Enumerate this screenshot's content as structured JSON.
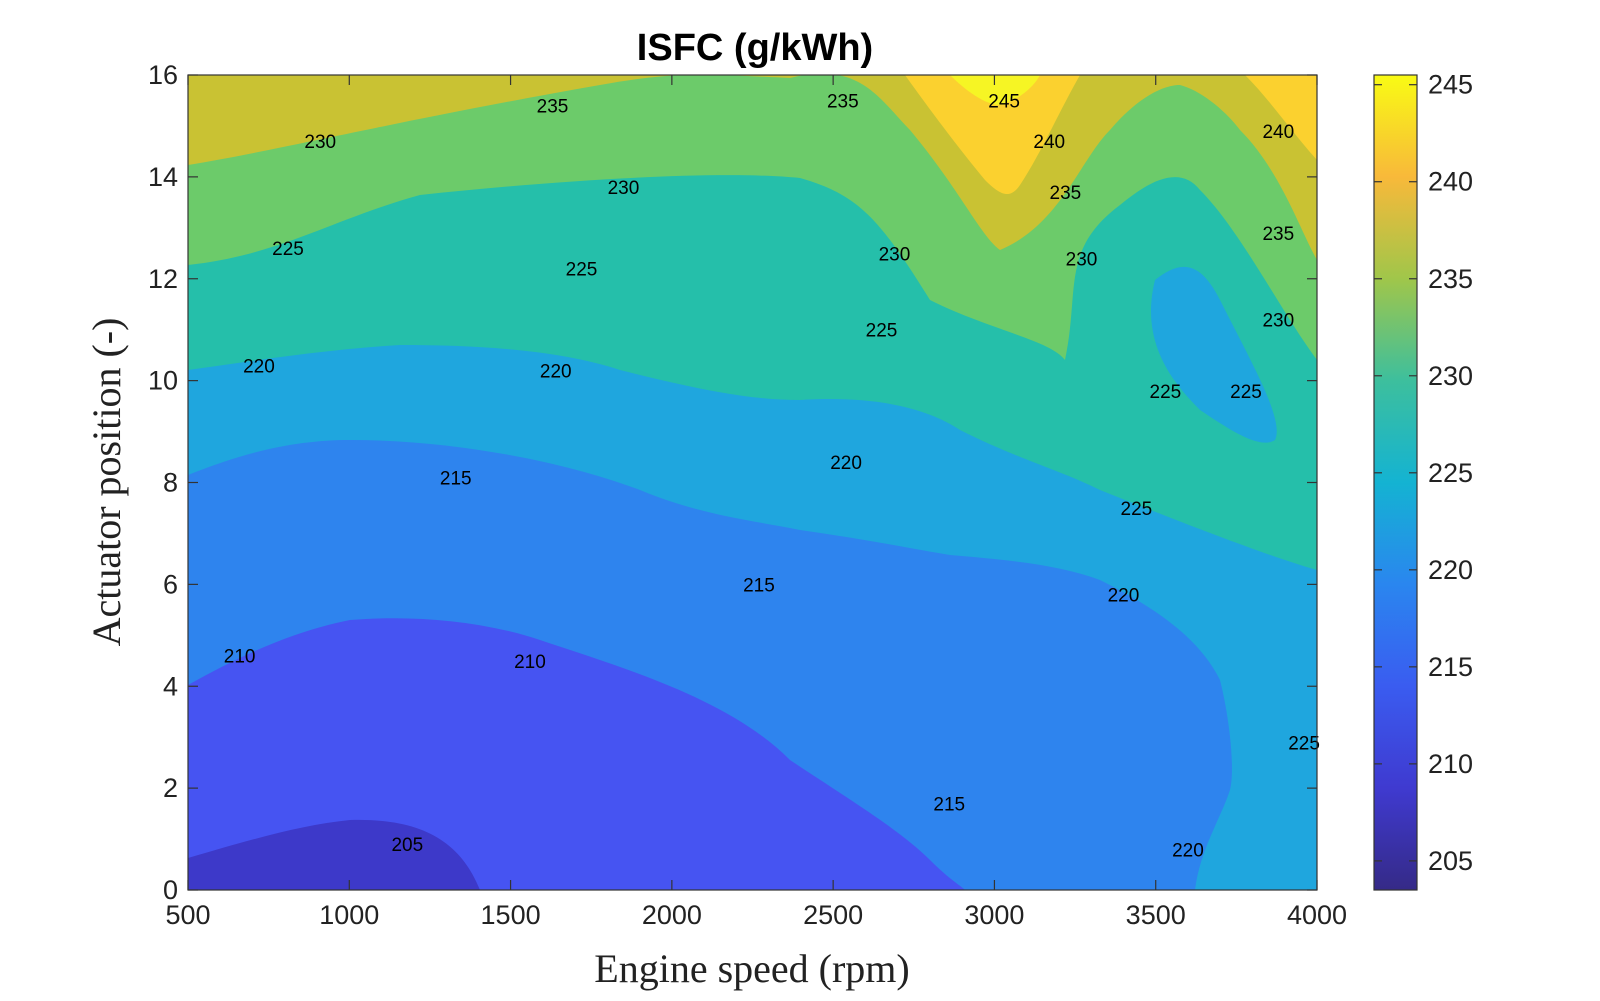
{
  "chart_data": {
    "type": "heatmap",
    "subtype": "filled-contour",
    "title": "ISFC (g/kWh)",
    "xlabel": "Engine speed (rpm)",
    "ylabel": "Actuator position (-)",
    "xlim": [
      500,
      4000
    ],
    "ylim": [
      0,
      16
    ],
    "xticks": [
      500,
      1000,
      1500,
      2000,
      2500,
      3000,
      3500,
      4000
    ],
    "yticks": [
      0,
      2,
      4,
      6,
      8,
      10,
      12,
      14,
      16
    ],
    "colorbar": {
      "range": [
        203.5,
        245.5
      ],
      "ticks": [
        205,
        210,
        215,
        220,
        225,
        230,
        235,
        240,
        245
      ],
      "colormap": "parula"
    },
    "levels": [
      205,
      210,
      215,
      220,
      225,
      230,
      235,
      240,
      245
    ],
    "level_colors": [
      "#362c9c",
      "#3d39c9",
      "#4654f2",
      "#2e84ee",
      "#1fa6de",
      "#25bfaa",
      "#6ccb6a",
      "#c9c233",
      "#fbd12f",
      "#f6f524"
    ],
    "contour_labels": [
      {
        "text": "245",
        "x": 3030,
        "y": 15.5
      },
      {
        "text": "240",
        "x": 3170,
        "y": 14.7
      },
      {
        "text": "240",
        "x": 3880,
        "y": 14.9
      },
      {
        "text": "235",
        "x": 1630,
        "y": 15.4
      },
      {
        "text": "235",
        "x": 2530,
        "y": 15.5
      },
      {
        "text": "235",
        "x": 3220,
        "y": 13.7
      },
      {
        "text": "235",
        "x": 3880,
        "y": 12.9
      },
      {
        "text": "230",
        "x": 910,
        "y": 14.7
      },
      {
        "text": "230",
        "x": 1850,
        "y": 13.8
      },
      {
        "text": "230",
        "x": 2690,
        "y": 12.5
      },
      {
        "text": "230",
        "x": 3270,
        "y": 12.4
      },
      {
        "text": "230",
        "x": 3880,
        "y": 11.2
      },
      {
        "text": "225",
        "x": 810,
        "y": 12.6
      },
      {
        "text": "225",
        "x": 1720,
        "y": 12.2
      },
      {
        "text": "225",
        "x": 2650,
        "y": 11.0
      },
      {
        "text": "225",
        "x": 3530,
        "y": 9.8
      },
      {
        "text": "225",
        "x": 3780,
        "y": 9.8
      },
      {
        "text": "225",
        "x": 3440,
        "y": 7.5
      },
      {
        "text": "225",
        "x": 3960,
        "y": 2.9
      },
      {
        "text": "220",
        "x": 720,
        "y": 10.3
      },
      {
        "text": "220",
        "x": 1640,
        "y": 10.2
      },
      {
        "text": "220",
        "x": 2540,
        "y": 8.4
      },
      {
        "text": "220",
        "x": 3400,
        "y": 5.8
      },
      {
        "text": "220",
        "x": 3600,
        "y": 0.8
      },
      {
        "text": "215",
        "x": 1330,
        "y": 8.1
      },
      {
        "text": "215",
        "x": 2270,
        "y": 6.0
      },
      {
        "text": "215",
        "x": 2860,
        "y": 1.7
      },
      {
        "text": "210",
        "x": 660,
        "y": 4.6
      },
      {
        "text": "210",
        "x": 1560,
        "y": 4.5
      },
      {
        "text": "205",
        "x": 1180,
        "y": 0.9
      }
    ]
  }
}
